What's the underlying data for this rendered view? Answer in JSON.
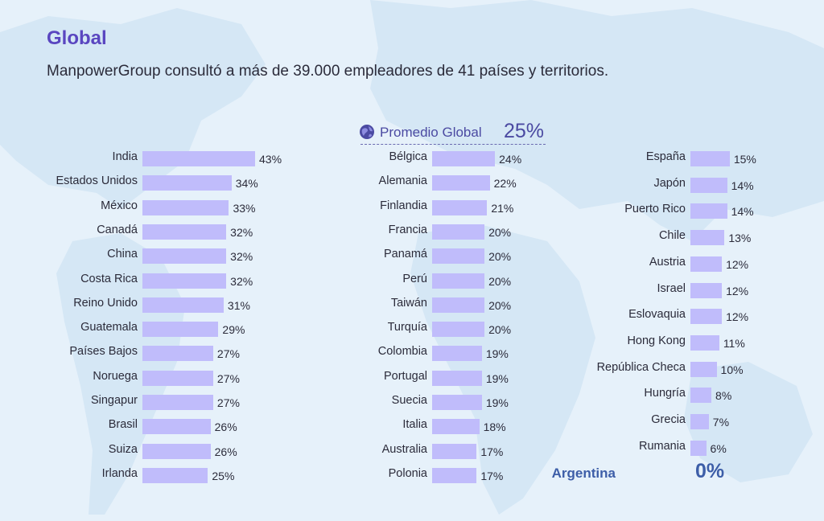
{
  "header": {
    "title": "Global",
    "subtitle": "ManpowerGroup consultó a más de 39.000 empleadores de 41 países y territorios."
  },
  "global_average": {
    "label": "Promedio Global",
    "value_label": "25%",
    "icon": "globe-icon"
  },
  "highlight": {
    "name": "Argentina",
    "value_label": "0%"
  },
  "colors": {
    "bar": "#c0bcfb",
    "title": "#5a46c0",
    "highlight": "#3d5ea8",
    "background": "#e6f1fa"
  },
  "chart_data": {
    "type": "bar",
    "orientation": "horizontal",
    "title": "",
    "xlabel": "",
    "ylabel": "",
    "xlim": [
      0,
      43
    ],
    "grid": false,
    "reference": {
      "label": "Promedio Global",
      "value": 25
    },
    "columns": [
      {
        "categories": [
          "India",
          "Estados Unidos",
          "México",
          "Canadá",
          "China",
          "Costa Rica",
          "Reino Unido",
          "Guatemala",
          "Países Bajos",
          "Noruega",
          "Singapur",
          "Brasil",
          "Suiza",
          "Irlanda"
        ],
        "values": [
          43,
          34,
          33,
          32,
          32,
          32,
          31,
          29,
          27,
          27,
          27,
          26,
          26,
          25
        ],
        "labels": [
          "43%",
          "34%",
          "33%",
          "32%",
          "32%",
          "32%",
          "31%",
          "29%",
          "27%",
          "27%",
          "27%",
          "26%",
          "26%",
          "25%"
        ]
      },
      {
        "categories": [
          "Bélgica",
          "Alemania",
          "Finlandia",
          "Francia",
          "Panamá",
          "Perú",
          "Taiwán",
          "Turquía",
          "Colombia",
          "Portugal",
          "Suecia",
          "Italia",
          "Australia",
          "Polonia"
        ],
        "values": [
          24,
          22,
          21,
          20,
          20,
          20,
          20,
          20,
          19,
          19,
          19,
          18,
          17,
          17
        ],
        "labels": [
          "24%",
          "22%",
          "21%",
          "20%",
          "20%",
          "20%",
          "20%",
          "20%",
          "19%",
          "19%",
          "19%",
          "18%",
          "17%",
          "17%"
        ]
      },
      {
        "categories": [
          "España",
          "Japón",
          "Puerto Rico",
          "Chile",
          "Austria",
          "Israel",
          "Eslovaquia",
          "Hong Kong",
          "República Checa",
          "Hungría",
          "Grecia",
          "Rumania"
        ],
        "values": [
          15,
          14,
          14,
          13,
          12,
          12,
          12,
          11,
          10,
          8,
          7,
          6
        ],
        "labels": [
          "15%",
          "14%",
          "14%",
          "13%",
          "12%",
          "12%",
          "12%",
          "11%",
          "10%",
          "8%",
          "7%",
          "6%"
        ]
      }
    ]
  }
}
